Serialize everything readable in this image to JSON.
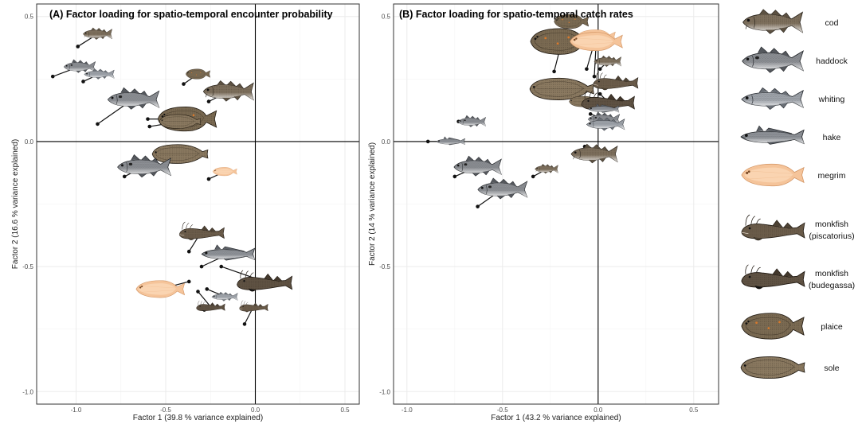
{
  "colors": {
    "cod": "#7d6f5c",
    "haddock": "#8c8f94",
    "whiting": "#9fa4ab",
    "hake": "#8e9298",
    "megrim": "#f5c49a",
    "monkfish_piscatorius": "#6b5c4a",
    "monkfish_budegassa": "#5f5243",
    "plaice": "#7a6a52",
    "sole": "#8a7960"
  },
  "legend": {
    "items": [
      {
        "species": "cod",
        "label": "cod",
        "label2": ""
      },
      {
        "species": "haddock",
        "label": "haddock",
        "label2": ""
      },
      {
        "species": "whiting",
        "label": "whiting",
        "label2": ""
      },
      {
        "species": "hake",
        "label": "hake",
        "label2": ""
      },
      {
        "species": "megrim",
        "label": "megrim",
        "label2": ""
      },
      {
        "species": "monkfish_piscatorius",
        "label": "monkfish",
        "label2": "(piscatorius)"
      },
      {
        "species": "monkfish_budegassa",
        "label": "monkfish",
        "label2": "(budegassa)"
      },
      {
        "species": "plaice",
        "label": "plaice",
        "label2": ""
      },
      {
        "species": "sole",
        "label": "sole",
        "label2": ""
      }
    ]
  },
  "chart_data": [
    {
      "type": "scatter",
      "title": "(A) Factor loading for spatio-temporal encounter probability",
      "xlabel": "Factor 1 (39.8 % variance explained)",
      "ylabel": "Factor 2 (16.6 % variance explained)",
      "xlim": [
        -1.22,
        0.58
      ],
      "ylim": [
        -1.05,
        0.55
      ],
      "xticks": [
        "-1.0",
        "-0.5",
        "0.0",
        "0.5"
      ],
      "xtick_values": [
        -1.0,
        -0.5,
        0.0,
        0.5
      ],
      "yticks": [
        "0.5",
        "0.0",
        "-0.5",
        "-1.0"
      ],
      "ytick_values": [
        0.5,
        0.0,
        -0.5,
        -1.0
      ],
      "grid": true,
      "points": [
        {
          "species": "cod",
          "x": -0.99,
          "y": 0.38,
          "ix": -0.88,
          "iy": 0.43,
          "s": 0.75
        },
        {
          "species": "haddock",
          "x": -1.13,
          "y": 0.26,
          "ix": -0.98,
          "iy": 0.3,
          "s": 0.8
        },
        {
          "species": "whiting",
          "x": -0.96,
          "y": 0.24,
          "ix": -0.87,
          "iy": 0.27,
          "s": 0.75
        },
        {
          "species": "haddock",
          "x": -0.88,
          "y": 0.07,
          "ix": -0.68,
          "iy": 0.17,
          "s": 1.3
        },
        {
          "species": "plaice",
          "x": -0.4,
          "y": 0.23,
          "ix": -0.32,
          "iy": 0.27,
          "s": 0.6
        },
        {
          "species": "cod",
          "x": -0.26,
          "y": 0.16,
          "ix": -0.15,
          "iy": 0.2,
          "s": 1.3
        },
        {
          "species": "plaice",
          "x": -0.6,
          "y": 0.09,
          "ix": -0.38,
          "iy": 0.09,
          "s": 1.45
        },
        {
          "species": "sole",
          "x": -0.59,
          "y": 0.06,
          "ix": -0.42,
          "iy": 0.08,
          "s": 1.0
        },
        {
          "species": "sole",
          "x": -0.46,
          "y": -0.04,
          "ix": -0.42,
          "iy": -0.05,
          "s": 1.35
        },
        {
          "species": "haddock",
          "x": -0.73,
          "y": -0.14,
          "ix": -0.62,
          "iy": -0.1,
          "s": 1.35
        },
        {
          "species": "megrim",
          "x": -0.26,
          "y": -0.15,
          "ix": -0.17,
          "iy": -0.12,
          "s": 0.6
        },
        {
          "species": "monkfish_piscatorius",
          "x": -0.37,
          "y": -0.44,
          "ix": -0.3,
          "iy": -0.36,
          "s": 1.1
        },
        {
          "species": "hake",
          "x": -0.3,
          "y": -0.5,
          "ix": -0.15,
          "iy": -0.45,
          "s": 1.3
        },
        {
          "species": "monkfish_budegassa",
          "x": -0.19,
          "y": -0.5,
          "ix": 0.05,
          "iy": -0.56,
          "s": 1.35
        },
        {
          "species": "megrim",
          "x": -0.37,
          "y": -0.56,
          "ix": -0.53,
          "iy": -0.59,
          "s": 1.2
        },
        {
          "species": "whiting",
          "x": -0.27,
          "y": -0.59,
          "ix": -0.17,
          "iy": -0.62,
          "s": 0.65
        },
        {
          "species": "monkfish_budegassa",
          "x": -0.32,
          "y": -0.6,
          "ix": -0.25,
          "iy": -0.66,
          "s": 0.7
        },
        {
          "species": "monkfish_piscatorius",
          "x": -0.06,
          "y": -0.73,
          "ix": -0.01,
          "iy": -0.66,
          "s": 0.7
        }
      ]
    },
    {
      "type": "scatter",
      "title": "(B) Factor loading for spatio-temporal catch rates",
      "xlabel": "Factor 1 (43.2 % variance explained)",
      "ylabel": "Factor 2 (14 % variance explained)",
      "xlim": [
        -1.07,
        0.63
      ],
      "ylim": [
        -1.05,
        0.55
      ],
      "xticks": [
        "-1.0",
        "-0.5",
        "0.0",
        "0.5"
      ],
      "xtick_values": [
        -1.0,
        -0.5,
        0.0,
        0.5
      ],
      "yticks": [
        "0.5",
        "0.0",
        "-0.5",
        "-1.0"
      ],
      "ytick_values": [
        0.5,
        0.0,
        -0.5,
        -1.0
      ],
      "grid": true,
      "points": [
        {
          "species": "plaice",
          "x": -0.15,
          "y": 0.47,
          "ix": -0.14,
          "iy": 0.48,
          "s": 0.85
        },
        {
          "species": "plaice",
          "x": -0.23,
          "y": 0.28,
          "ix": -0.19,
          "iy": 0.4,
          "s": 1.55
        },
        {
          "species": "megrim",
          "x": -0.06,
          "y": 0.29,
          "ix": -0.01,
          "iy": 0.42,
          "s": 0.95
        },
        {
          "species": "megrim",
          "x": -0.02,
          "y": 0.26,
          "ix": -0.01,
          "iy": 0.4,
          "s": 1.3
        },
        {
          "species": "cod",
          "x": 0.01,
          "y": 0.29,
          "ix": 0.05,
          "iy": 0.32,
          "s": 0.7
        },
        {
          "species": "sole",
          "x": -0.12,
          "y": 0.23,
          "ix": -0.19,
          "iy": 0.21,
          "s": 1.55
        },
        {
          "species": "monkfish_piscatorius",
          "x": 0.01,
          "y": 0.24,
          "ix": 0.09,
          "iy": 0.24,
          "s": 1.1
        },
        {
          "species": "sole",
          "x": -0.08,
          "y": 0.16,
          "ix": -0.07,
          "iy": 0.16,
          "s": 0.75
        },
        {
          "species": "monkfish_budegassa",
          "x": 0.01,
          "y": 0.19,
          "ix": 0.05,
          "iy": 0.16,
          "s": 1.3
        },
        {
          "species": "hake",
          "x": -0.04,
          "y": 0.14,
          "ix": 0.03,
          "iy": 0.13,
          "s": 0.75
        },
        {
          "species": "haddock",
          "x": -0.04,
          "y": 0.11,
          "ix": 0.03,
          "iy": 0.09,
          "s": 0.8
        },
        {
          "species": "whiting",
          "x": -0.04,
          "y": 0.09,
          "ix": 0.04,
          "iy": 0.07,
          "s": 0.95
        },
        {
          "species": "haddock",
          "x": -0.73,
          "y": 0.08,
          "ix": -0.66,
          "iy": 0.08,
          "s": 0.7
        },
        {
          "species": "hake",
          "x": -0.89,
          "y": 0.0,
          "ix": -0.77,
          "iy": 0.0,
          "s": 0.7
        },
        {
          "species": "cod",
          "x": -0.07,
          "y": -0.02,
          "ix": -0.02,
          "iy": -0.05,
          "s": 1.2
        },
        {
          "species": "haddock",
          "x": -0.75,
          "y": -0.14,
          "ix": -0.63,
          "iy": -0.1,
          "s": 1.2
        },
        {
          "species": "cod",
          "x": -0.34,
          "y": -0.14,
          "ix": -0.27,
          "iy": -0.11,
          "s": 0.6
        },
        {
          "species": "haddock",
          "x": -0.63,
          "y": -0.26,
          "ix": -0.5,
          "iy": -0.19,
          "s": 1.25
        }
      ]
    }
  ]
}
